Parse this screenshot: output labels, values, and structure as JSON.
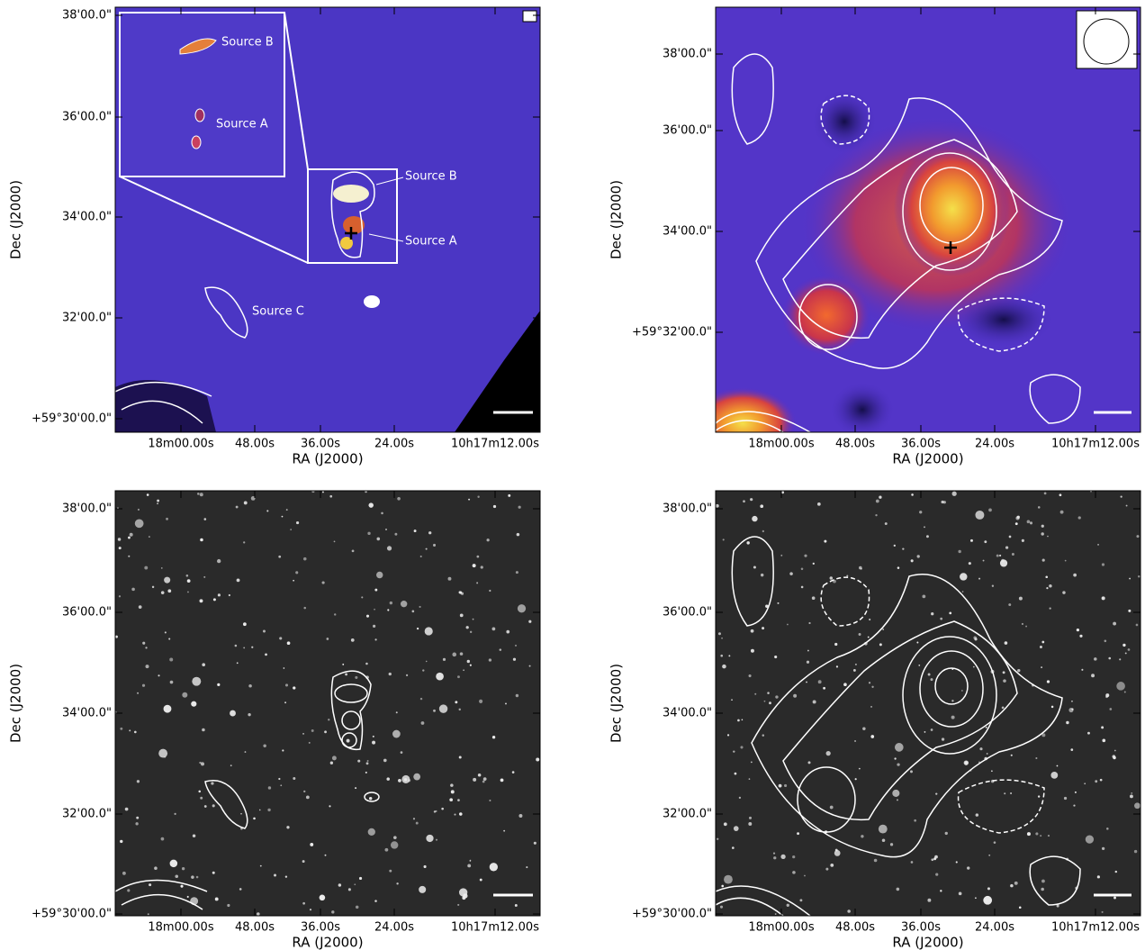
{
  "panels": [
    {
      "x_label": "RA (J2000)",
      "y_label": "Dec (J2000)",
      "x_ticks": [
        "18m00.00s",
        "48.00s",
        "36.00s",
        "24.00s",
        "10h17m12.00s"
      ],
      "y_ticks": [
        "38'00.0\"",
        "36'00.0\"",
        "34'00.0\"",
        "32'00.0\"",
        "+59°30'00.0\""
      ],
      "annotations": [
        "Source B",
        "Source A",
        "Source C",
        "Source B",
        "Source A"
      ]
    },
    {
      "x_label": "RA (J2000)",
      "y_label": "Dec (J2000)",
      "x_ticks": [
        "18m00.00s",
        "48.00s",
        "36.00s",
        "24.00s",
        "10h17m12.00s"
      ],
      "y_ticks": [
        "38'00.0\"",
        "36'00.0\"",
        "34'00.0\"",
        "+59°32'00.0\""
      ]
    },
    {
      "x_label": "RA (J2000)",
      "y_label": "Dec (J2000)",
      "x_ticks": [
        "18m00.00s",
        "48.00s",
        "36.00s",
        "24.00s",
        "10h17m12.00s"
      ],
      "y_ticks": [
        "38'00.0\"",
        "36'00.0\"",
        "34'00.0\"",
        "32'00.0\"",
        "+59°30'00.0\""
      ]
    },
    {
      "x_label": "RA (J2000)",
      "y_label": "Dec (J2000)",
      "x_ticks": [
        "18m00.00s",
        "48.00s",
        "36.00s",
        "24.00s",
        "10h17m12.00s"
      ],
      "y_ticks": [
        "38'00.0\"",
        "36'00.0\"",
        "34'00.0\"",
        "32'00.0\"",
        "+59°30'00.0\""
      ]
    }
  ]
}
